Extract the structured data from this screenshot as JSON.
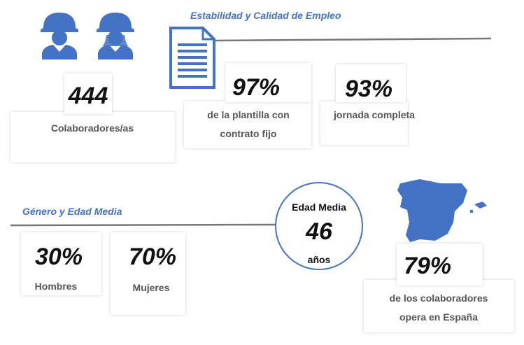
{
  "headcount": {
    "value": "444",
    "label": "Colaboradores/as"
  },
  "employment": {
    "title": "Estabilidad y Calidad de Empleo",
    "stats": [
      {
        "value": "97%",
        "lines": [
          "de la plantilla con",
          "contrato fijo"
        ]
      },
      {
        "value": "93%",
        "lines": [
          "jornada completa"
        ]
      }
    ]
  },
  "gender": {
    "title": "Género y Edad Media",
    "stats": [
      {
        "value": "30%",
        "label": "Hombres"
      },
      {
        "value": "70%",
        "label": "Mujeres"
      }
    ],
    "age": {
      "title": "Edad Media",
      "value": "46",
      "unit": "años"
    }
  },
  "spain": {
    "value": "79%",
    "lines": [
      "de los colaboradores",
      "opera en España"
    ]
  }
}
